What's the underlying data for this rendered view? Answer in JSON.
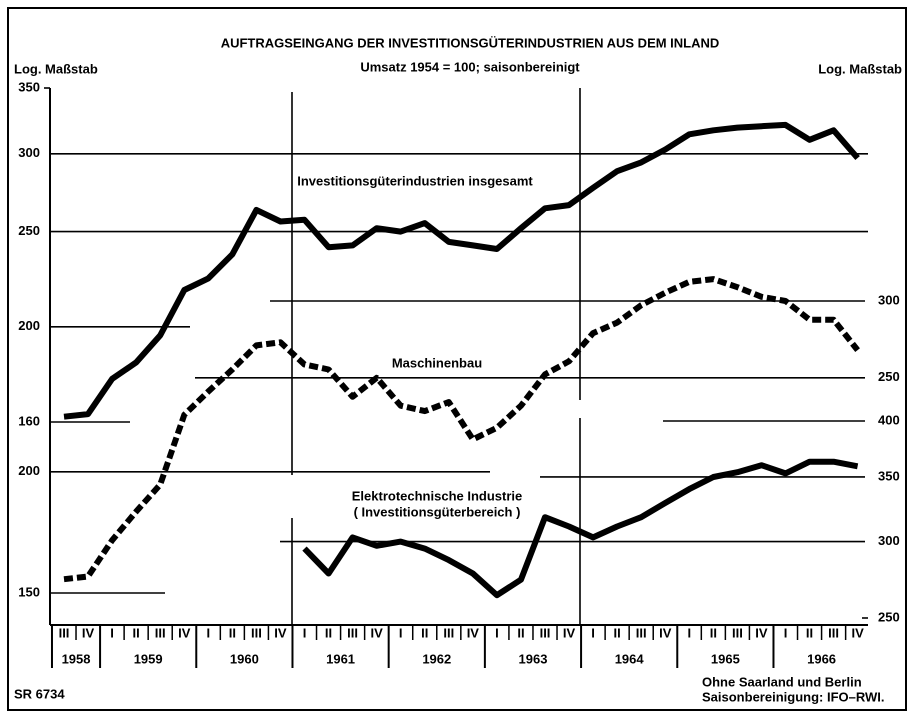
{
  "chart_data": {
    "type": "line",
    "title": "AUFTRAGSEINGANG DER INVESTITIONSGÜTERINDUSTRIEN AUS DEM INLAND",
    "subtitle": "Umsatz 1954 = 100; saisonbereinigt",
    "y_axis_label": "Log. Maßstab",
    "y2_axis_label": "Log. Maßstab",
    "log_scale": true,
    "categories": [
      "III",
      "IV",
      "I",
      "II",
      "III",
      "IV",
      "I",
      "II",
      "III",
      "IV",
      "I",
      "II",
      "III",
      "IV",
      "I",
      "II",
      "III",
      "IV",
      "I",
      "II",
      "III",
      "IV",
      "I",
      "II",
      "III",
      "IV",
      "I",
      "II",
      "III",
      "IV",
      "I",
      "II",
      "III",
      "IV"
    ],
    "years": [
      "1958",
      "1959",
      "1960",
      "1961",
      "1962",
      "1963",
      "1964",
      "1965",
      "1966"
    ],
    "ylim": [
      160,
      350
    ],
    "yticks": [
      160,
      200,
      250,
      300,
      350
    ],
    "y2lim": [
      150,
      300
    ],
    "y2ticks": [
      150,
      200,
      250,
      300
    ],
    "y3lim": [
      250,
      400
    ],
    "y3ticks": [
      250,
      300,
      350,
      400
    ],
    "series": [
      {
        "name": "Investitionsgüterindustrien insgesamt",
        "color": "#000000",
        "style": "solid",
        "axis": "y",
        "values": [
          162,
          163,
          177,
          184,
          196,
          218,
          224,
          237,
          263,
          256,
          257,
          241,
          242,
          252,
          250,
          255,
          244,
          242,
          240,
          252,
          264,
          266,
          277,
          288,
          294,
          303,
          314,
          317,
          319,
          320,
          321,
          310,
          317,
          297
        ]
      },
      {
        "name": "Maschinenbau",
        "color": "#000000",
        "style": "dashed",
        "axis": "y2",
        "values": [
          155,
          156,
          170,
          182,
          194,
          229,
          242,
          255,
          270,
          272,
          258,
          255,
          239,
          250,
          234,
          231,
          236,
          216,
          222,
          234,
          252,
          260,
          278,
          285,
          297,
          306,
          314,
          316,
          310,
          303,
          300,
          287,
          287,
          267
        ]
      },
      {
        "name": "Elektrotechnische Industrie",
        "note": "( Investitionsgüterbereich )",
        "color": "#000000",
        "style": "solid",
        "axis": "y3",
        "values": [
          null,
          null,
          null,
          null,
          null,
          null,
          null,
          null,
          null,
          null,
          295,
          278,
          303,
          297,
          300,
          295,
          287,
          278,
          264,
          274,
          318,
          311,
          303,
          311,
          318,
          329,
          340,
          350,
          354,
          360,
          353,
          363,
          363,
          359
        ]
      }
    ],
    "footer_left": "SR 6734",
    "footer_right": [
      "Ohne Saarland und Berlin",
      "Saisonbereinigung: IFO–RWI."
    ]
  }
}
